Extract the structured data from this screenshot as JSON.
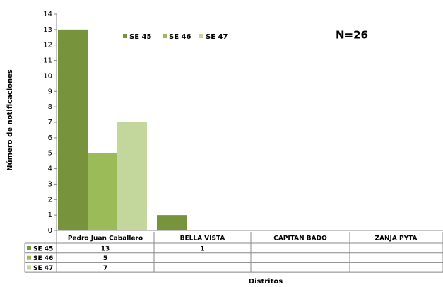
{
  "chart_data": {
    "type": "bar",
    "y_label": "Número de notificaciones",
    "x_label": "Distritos",
    "annotation": "N=26",
    "categories": [
      "Pedro Juan Caballero",
      "BELLA VISTA",
      "CAPITAN BADO",
      "ZANJA PYTA"
    ],
    "series": [
      {
        "name": "SE 45",
        "color": "#77933c",
        "values": [
          13,
          1,
          null,
          null
        ]
      },
      {
        "name": "SE 46",
        "color": "#9bbb59",
        "values": [
          5,
          null,
          null,
          null
        ]
      },
      {
        "name": "SE 47",
        "color": "#c3d69b",
        "values": [
          7,
          null,
          null,
          null
        ]
      }
    ],
    "ylim": [
      0,
      14
    ],
    "yticks": [
      0,
      1,
      2,
      3,
      4,
      5,
      6,
      7,
      8,
      9,
      10,
      11,
      12,
      13,
      14
    ],
    "grid": false,
    "legend": "top"
  }
}
